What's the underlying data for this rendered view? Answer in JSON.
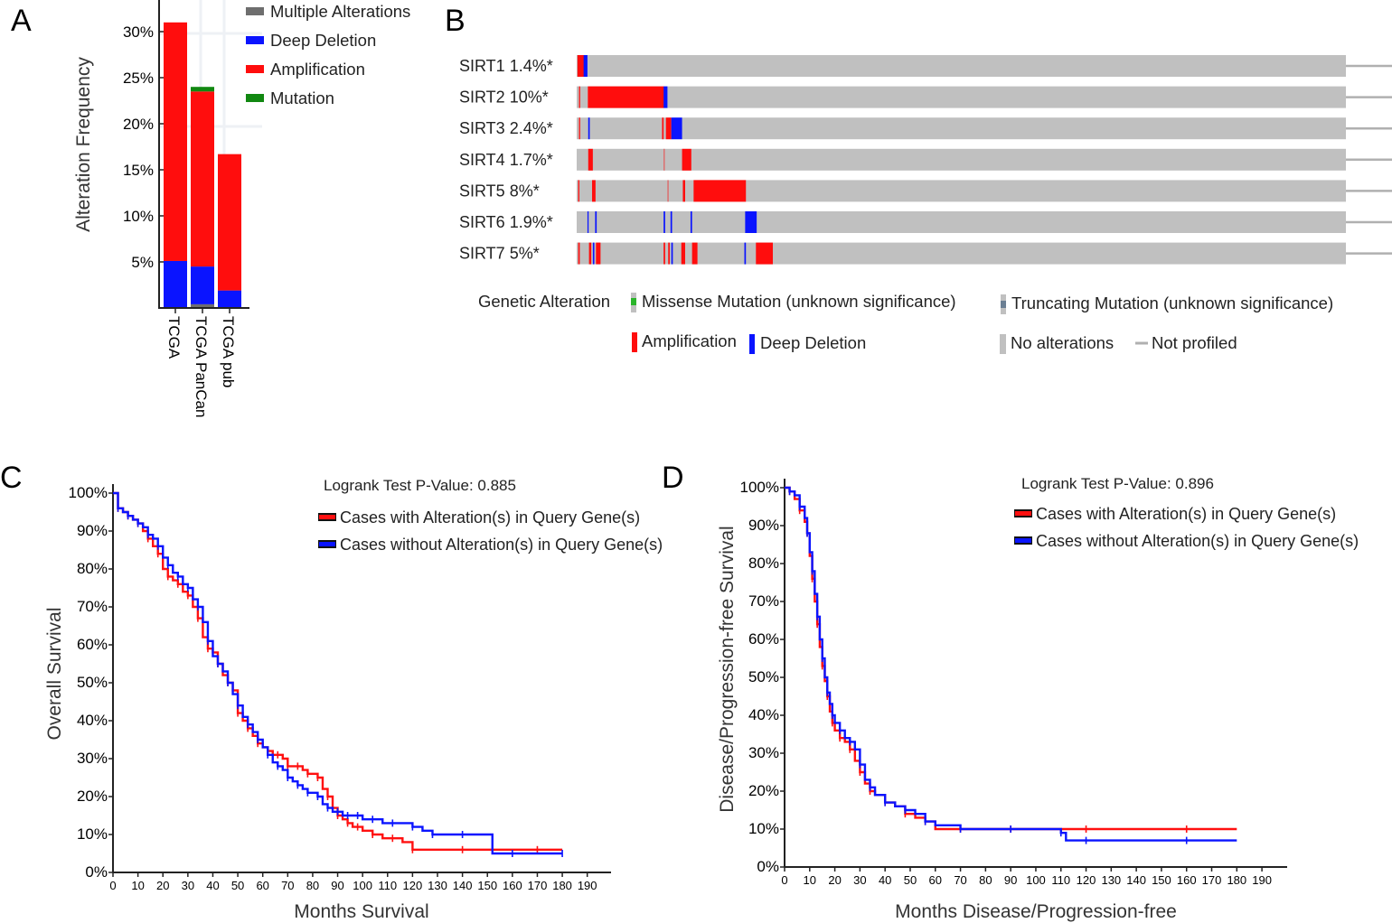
{
  "panels": {
    "a": {
      "letter": "A",
      "chart_data": {
        "type": "bar",
        "ylabel": "Alteration Frequency",
        "ylim": [
          0,
          32
        ],
        "yticks": [
          "5%",
          "10%",
          "15%",
          "20%",
          "25%",
          "30%"
        ],
        "ytick_values": [
          5,
          10,
          15,
          20,
          25,
          30
        ],
        "categories": [
          "TCGA",
          "TCGA PanCan",
          "TCGA pub"
        ],
        "series": [
          {
            "name": "Multiple Alterations",
            "color": "#6e6e6e",
            "values": [
              0,
              0.4,
              0
            ]
          },
          {
            "name": "Deep Deletion",
            "color": "#0a14ff",
            "values": [
              5.1,
              4.1,
              1.9
            ]
          },
          {
            "name": "Amplification",
            "color": "#ff0d0d",
            "values": [
              25.9,
              19.0,
              14.8
            ]
          },
          {
            "name": "Mutation",
            "color": "#118811",
            "values": [
              0,
              0.5,
              0
            ]
          }
        ],
        "legend": [
          "Multiple Alterations",
          "Deep Deletion",
          "Amplification",
          "Mutation"
        ]
      }
    },
    "b": {
      "letter": "B",
      "chart_data": {
        "type": "oncoprint",
        "genes": [
          {
            "label": "SIRT1 1.4%*",
            "events": [
              {
                "pos": 0.1,
                "w": 0.9,
                "c": "#ff0d0d"
              },
              {
                "pos": 0.9,
                "w": 0.5,
                "c": "#0a14ff"
              }
            ]
          },
          {
            "label": "SIRT2 10%*",
            "events": [
              {
                "pos": 0.3,
                "w": 0.15,
                "c": "#ff0d0d"
              },
              {
                "pos": 1.45,
                "w": 9.9,
                "c": "#ff0d0d"
              },
              {
                "pos": 11.3,
                "w": 0.5,
                "c": "#0a14ff"
              }
            ]
          },
          {
            "label": "SIRT3 2.4%*",
            "events": [
              {
                "pos": 0.3,
                "w": 0.15,
                "c": "#ff0d0d"
              },
              {
                "pos": 1.5,
                "w": 0.2,
                "c": "#0a14ff"
              },
              {
                "pos": 11.1,
                "w": 0.2,
                "c": "#ff0d0d"
              },
              {
                "pos": 11.6,
                "w": 0.7,
                "c": "#ff0d0d"
              },
              {
                "pos": 12.3,
                "w": 1.4,
                "c": "#0a14ff"
              }
            ]
          },
          {
            "label": "SIRT4 1.7%*",
            "events": [
              {
                "pos": 1.5,
                "w": 0.6,
                "c": "#ff0d0d"
              },
              {
                "pos": 11.3,
                "w": 0.15,
                "c": "#e06060"
              },
              {
                "pos": 13.7,
                "w": 1.2,
                "c": "#ff0d0d"
              }
            ]
          },
          {
            "label": "SIRT5 8%*",
            "events": [
              {
                "pos": 0.2,
                "w": 0.15,
                "c": "#ff0d0d"
              },
              {
                "pos": 2.0,
                "w": 0.45,
                "c": "#ff0d0d"
              },
              {
                "pos": 11.8,
                "w": 0.15,
                "c": "#e06060"
              },
              {
                "pos": 13.8,
                "w": 0.3,
                "c": "#ff0d0d"
              },
              {
                "pos": 15.2,
                "w": 6.8,
                "c": "#ff0d0d"
              }
            ]
          },
          {
            "label": "SIRT6 1.9%*",
            "events": [
              {
                "pos": 1.4,
                "w": 0.15,
                "c": "#0a14ff"
              },
              {
                "pos": 2.4,
                "w": 0.2,
                "c": "#0a14ff"
              },
              {
                "pos": 11.3,
                "w": 0.2,
                "c": "#0a14ff"
              },
              {
                "pos": 12.2,
                "w": 0.2,
                "c": "#0a14ff"
              },
              {
                "pos": 14.8,
                "w": 0.2,
                "c": "#0a14ff"
              },
              {
                "pos": 21.9,
                "w": 1.5,
                "c": "#0a14ff"
              }
            ]
          },
          {
            "label": "SIRT7 5%*",
            "events": [
              {
                "pos": 0.2,
                "w": 0.2,
                "c": "#ff0d0d"
              },
              {
                "pos": 1.6,
                "w": 0.3,
                "c": "#ff0d0d"
              },
              {
                "pos": 2.1,
                "w": 0.2,
                "c": "#0a14ff"
              },
              {
                "pos": 2.5,
                "w": 0.6,
                "c": "#ff0d0d"
              },
              {
                "pos": 11.3,
                "w": 0.2,
                "c": "#ff0d0d"
              },
              {
                "pos": 11.9,
                "w": 0.2,
                "c": "#ff0d0d"
              },
              {
                "pos": 12.3,
                "w": 0.2,
                "c": "#0a14ff"
              },
              {
                "pos": 13.6,
                "w": 0.5,
                "c": "#ff0d0d"
              },
              {
                "pos": 15.0,
                "w": 0.7,
                "c": "#ff0d0d"
              },
              {
                "pos": 21.8,
                "w": 0.2,
                "c": "#0a14ff"
              },
              {
                "pos": 23.3,
                "w": 2.2,
                "c": "#ff0d0d"
              }
            ]
          }
        ],
        "legend": {
          "title": "Genetic Alteration",
          "missense": "Missense Mutation (unknown significance)",
          "truncating": "Truncating Mutation (unknown significance)",
          "amplification": "Amplification",
          "deep_deletion": "Deep Deletion",
          "no_alterations": "No alterations",
          "not_profiled": "Not profiled"
        },
        "colors": {
          "amp": "#ff0d0d",
          "del": "#0a14ff",
          "none": "#c0c0c0",
          "missense": "#2bb52b",
          "truncating": "#6b7f93"
        }
      }
    },
    "c": {
      "letter": "C",
      "chart_data": {
        "type": "line",
        "title": "Logrank Test P-Value: 0.885",
        "xlabel": "Months Survival",
        "ylabel": "Overall Survival",
        "xlim": [
          0,
          195
        ],
        "ylim": [
          0,
          100
        ],
        "xticks": [
          "0",
          "10",
          "20",
          "30",
          "40",
          "50",
          "60",
          "70",
          "80",
          "90",
          "100",
          "110",
          "120",
          "130",
          "140",
          "150",
          "160",
          "170",
          "180",
          "190"
        ],
        "yticks": [
          "0%",
          "10%",
          "20%",
          "30%",
          "40%",
          "50%",
          "60%",
          "70%",
          "80%",
          "90%",
          "100%"
        ],
        "legend": [
          "Cases with Alteration(s) in Query Gene(s)",
          "Cases without Alteration(s) in Query Gene(s)"
        ],
        "series": [
          {
            "name": "Cases with Alteration(s) in Query Gene(s)",
            "color": "#ff1010",
            "x": [
              0,
              2,
              4,
              6,
              8,
              10,
              12,
              14,
              16,
              18,
              20,
              22,
              24,
              26,
              28,
              30,
              32,
              34,
              36,
              38,
              40,
              42,
              44,
              46,
              48,
              50,
              52,
              54,
              56,
              58,
              60,
              62,
              64,
              66,
              68,
              70,
              72,
              74,
              76,
              78,
              80,
              82,
              84,
              86,
              88,
              90,
              92,
              94,
              96,
              98,
              100,
              104,
              108,
              112,
              116,
              120,
              130,
              140,
              150,
              152,
              160,
              170,
              180
            ],
            "y": [
              100,
              96,
              95,
              94,
              93,
              92,
              90,
              88,
              86,
              84,
              80,
              78,
              77,
              76,
              74,
              73,
              70,
              67,
              62,
              59,
              58,
              55,
              52,
              50,
              48,
              42,
              40,
              38,
              36,
              34,
              33,
              32,
              31,
              31,
              30,
              28,
              28,
              28,
              27,
              26,
              26,
              25,
              22,
              20,
              17,
              15,
              14,
              13,
              12,
              12,
              11,
              10,
              9,
              9,
              8,
              6,
              6,
              6,
              6,
              6,
              6,
              6,
              6
            ]
          },
          {
            "name": "Cases without Alteration(s) in Query Gene(s)",
            "color": "#0a14ff",
            "x": [
              0,
              2,
              4,
              6,
              8,
              10,
              12,
              14,
              16,
              18,
              20,
              22,
              24,
              26,
              28,
              30,
              32,
              34,
              36,
              38,
              40,
              42,
              44,
              46,
              48,
              50,
              52,
              54,
              56,
              58,
              60,
              62,
              64,
              66,
              68,
              70,
              72,
              74,
              76,
              78,
              80,
              82,
              84,
              86,
              88,
              90,
              92,
              94,
              96,
              98,
              100,
              104,
              108,
              112,
              116,
              120,
              124,
              128,
              132,
              140,
              152,
              160,
              170,
              180
            ],
            "y": [
              100,
              96,
              95,
              94,
              93,
              92,
              91,
              89,
              88,
              86,
              83,
              81,
              79,
              78,
              76,
              75,
              72,
              70,
              66,
              61,
              57,
              55,
              53,
              50,
              47,
              44,
              41,
              39,
              37,
              35,
              33,
              31,
              29,
              28,
              27,
              25,
              24,
              23,
              22,
              21,
              21,
              20,
              18,
              17,
              16,
              16,
              15,
              15,
              15,
              15,
              14,
              14,
              13,
              13,
              13,
              12,
              11,
              10,
              10,
              10,
              5,
              5,
              5,
              5
            ]
          }
        ]
      }
    },
    "d": {
      "letter": "D",
      "chart_data": {
        "type": "line",
        "title": "Logrank Test P-Value: 0.896",
        "xlabel": "Months Disease/Progression-free",
        "ylabel": "Disease/Progression-free Survival",
        "xlim": [
          0,
          195
        ],
        "ylim": [
          0,
          100
        ],
        "xticks": [
          "0",
          "10",
          "20",
          "30",
          "40",
          "50",
          "60",
          "70",
          "80",
          "90",
          "100",
          "110",
          "120",
          "130",
          "140",
          "150",
          "160",
          "170",
          "180",
          "190"
        ],
        "yticks": [
          "0%",
          "10%",
          "20%",
          "30%",
          "40%",
          "50%",
          "60%",
          "70%",
          "80%",
          "90%",
          "100%"
        ],
        "legend": [
          "Cases with Alteration(s) in Query Gene(s)",
          "Cases without Alteration(s) in Query Gene(s)"
        ],
        "series": [
          {
            "name": "Cases with Alteration(s) in Query Gene(s)",
            "color": "#ff1010",
            "x": [
              0,
              2,
              4,
              6,
              8,
              9,
              10,
              11,
              12,
              13,
              14,
              15,
              16,
              17,
              18,
              19,
              20,
              22,
              24,
              26,
              28,
              30,
              32,
              34,
              36,
              40,
              44,
              48,
              52,
              56,
              60,
              70,
              80,
              90,
              100,
              120,
              140,
              160,
              180
            ],
            "y": [
              100,
              99,
              97,
              94,
              91,
              88,
              82,
              76,
              70,
              64,
              58,
              53,
              49,
              45,
              41,
              38,
              36,
              34,
              33,
              31,
              28,
              25,
              22,
              20,
              19,
              17,
              16,
              14,
              13,
              12,
              10,
              10,
              10,
              10,
              10,
              10,
              10,
              10,
              10
            ]
          },
          {
            "name": "Cases without Alteration(s) in Query Gene(s)",
            "color": "#0a14ff",
            "x": [
              0,
              2,
              4,
              6,
              8,
              9,
              10,
              11,
              12,
              13,
              14,
              15,
              16,
              17,
              18,
              19,
              20,
              22,
              24,
              26,
              28,
              30,
              32,
              34,
              36,
              40,
              44,
              48,
              52,
              56,
              60,
              70,
              80,
              90,
              100,
              110,
              112,
              120,
              140,
              160,
              180
            ],
            "y": [
              100,
              99,
              98,
              95,
              92,
              88,
              83,
              78,
              72,
              66,
              60,
              55,
              50,
              46,
              43,
              40,
              38,
              36,
              34,
              33,
              31,
              27,
              23,
              21,
              19,
              17,
              16,
              15,
              14,
              12,
              11,
              10,
              10,
              10,
              10,
              9,
              7,
              7,
              7,
              7,
              7
            ]
          }
        ]
      }
    }
  }
}
